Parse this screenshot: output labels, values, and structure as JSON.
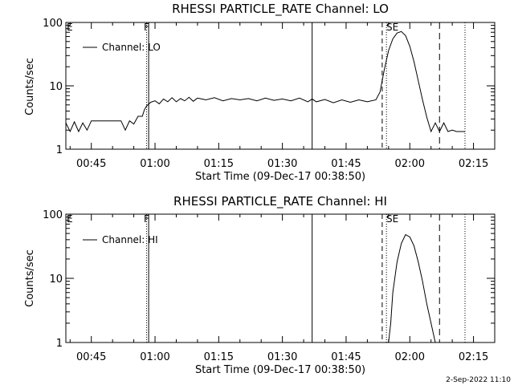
{
  "timestamp": "2-Sep-2022 11:10",
  "chart_data": [
    {
      "type": "line",
      "title": "RHESSI PARTICLE_RATE Channel: LO",
      "xlabel": "Start Time (09-Dec-17 00:38:50)",
      "ylabel": "Counts/sec",
      "y_scale": "log",
      "ylim": [
        1,
        100
      ],
      "xlim": [
        "00:39",
        "02:20"
      ],
      "x_ticks": [
        "00:45",
        "01:00",
        "01:15",
        "01:30",
        "01:45",
        "02:00",
        "02:15"
      ],
      "y_ticks": [
        "1",
        "10",
        "100"
      ],
      "legend": "upper-left",
      "series": [
        {
          "name": "Channel: LO",
          "x": [
            "00:39:00",
            "00:40:00",
            "00:41:00",
            "00:42:00",
            "00:43:00",
            "00:44:00",
            "00:45:00",
            "00:46:00",
            "00:47:00",
            "00:48:00",
            "00:49:00",
            "00:50:00",
            "00:51:00",
            "00:52:00",
            "00:53:00",
            "00:54:00",
            "00:55:00",
            "00:56:00",
            "00:57:00",
            "00:57:30",
            "00:58:00",
            "00:59:00",
            "01:00:00",
            "01:01:00",
            "01:02:00",
            "01:03:00",
            "01:04:00",
            "01:05:00",
            "01:06:00",
            "01:07:00",
            "01:08:00",
            "01:09:00",
            "01:10:00",
            "01:12:00",
            "01:14:00",
            "01:16:00",
            "01:18:00",
            "01:20:00",
            "01:22:00",
            "01:24:00",
            "01:26:00",
            "01:28:00",
            "01:30:00",
            "01:32:00",
            "01:34:00",
            "01:36:00",
            "01:37:00",
            "01:38:00",
            "01:40:00",
            "01:42:00",
            "01:44:00",
            "01:46:00",
            "01:48:00",
            "01:50:00",
            "01:52:00",
            "01:53:00",
            "01:54:00",
            "01:55:00",
            "01:56:00",
            "01:57:00",
            "01:58:00",
            "01:59:00",
            "02:00:00",
            "02:01:00",
            "02:02:00",
            "02:03:00",
            "02:04:00",
            "02:05:00",
            "02:06:00",
            "02:07:00",
            "02:08:00",
            "02:09:00",
            "02:10:00",
            "02:11:00",
            "02:12:00",
            "02:13:00"
          ],
          "values": [
            2.6,
            1.9,
            2.7,
            1.9,
            2.6,
            2.0,
            2.8,
            2.8,
            2.8,
            2.8,
            2.8,
            2.8,
            2.8,
            2.8,
            2.0,
            2.8,
            2.5,
            3.3,
            3.3,
            4.2,
            4.8,
            5.5,
            5.8,
            5.2,
            6.2,
            5.6,
            6.5,
            5.6,
            6.3,
            5.8,
            6.6,
            5.7,
            6.4,
            6.0,
            6.5,
            5.8,
            6.3,
            6.0,
            6.3,
            5.8,
            6.4,
            5.9,
            6.2,
            5.8,
            6.4,
            5.6,
            6.2,
            5.6,
            6.1,
            5.4,
            6.0,
            5.5,
            6.0,
            5.6,
            6.0,
            8.0,
            18.0,
            36.0,
            55.0,
            68.0,
            72.0,
            62.0,
            42.0,
            24.0,
            12.0,
            6.0,
            3.2,
            1.9,
            2.6,
            1.9,
            2.6,
            1.9,
            2.0,
            1.9,
            1.9,
            1.9
          ]
        }
      ],
      "flags": [
        {
          "label": "E",
          "time": "00:39:00"
        },
        {
          "label": "F",
          "time": "00:58:30"
        },
        {
          "label": "SE",
          "time": "01:54:00"
        }
      ]
    },
    {
      "type": "line",
      "title": "RHESSI PARTICLE_RATE Channel: HI",
      "xlabel": "Start Time (09-Dec-17 00:38:50)",
      "ylabel": "Counts/sec",
      "y_scale": "log",
      "ylim": [
        1,
        100
      ],
      "xlim": [
        "00:39",
        "02:20"
      ],
      "x_ticks": [
        "00:45",
        "01:00",
        "01:15",
        "01:30",
        "01:45",
        "02:00",
        "02:15"
      ],
      "y_ticks": [
        "1",
        "10",
        "100"
      ],
      "legend": "upper-left",
      "series": [
        {
          "name": "Channel: HI",
          "x": [
            "01:55:00",
            "01:55:30",
            "01:56:00",
            "01:57:00",
            "01:58:00",
            "01:59:00",
            "02:00:00",
            "02:01:00",
            "02:02:00",
            "02:03:00",
            "02:04:00",
            "02:05:00",
            "02:06:00"
          ],
          "values": [
            1.0,
            2.0,
            6.0,
            18.0,
            35.0,
            48.0,
            44.0,
            32.0,
            18.0,
            9.0,
            4.0,
            2.0,
            1.0
          ]
        }
      ],
      "flags": [
        {
          "label": "E",
          "time": "00:39:00"
        },
        {
          "label": "F",
          "time": "00:58:30"
        },
        {
          "label": "SE",
          "time": "01:54:00"
        }
      ]
    }
  ]
}
